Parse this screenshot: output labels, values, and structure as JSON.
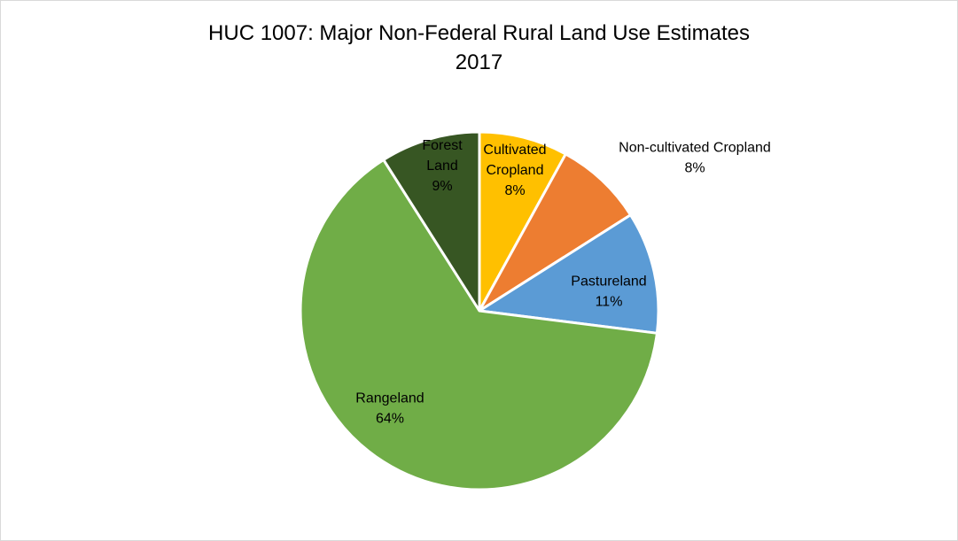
{
  "chart_data": {
    "type": "pie",
    "title": "HUC 1007: Major Non-Federal Rural Land Use Estimates",
    "subtitle": "2017",
    "start_angle_deg": 0,
    "direction": "clockwise",
    "slices": [
      {
        "label": "Cultivated Cropland",
        "label_lines": [
          "Cultivated",
          "Cropland"
        ],
        "value": 8,
        "percent_label": "8%",
        "color": "#FFC000"
      },
      {
        "label": "Non-cultivated Cropland",
        "label_lines": [
          "Non-cultivated Cropland"
        ],
        "value": 8,
        "percent_label": "8%",
        "color": "#ED7D31"
      },
      {
        "label": "Pastureland",
        "label_lines": [
          "Pastureland"
        ],
        "value": 11,
        "percent_label": "11%",
        "color": "#5B9BD5"
      },
      {
        "label": "Rangeland",
        "label_lines": [
          "Rangeland"
        ],
        "value": 64,
        "percent_label": "64%",
        "color": "#70AD47"
      },
      {
        "label": "Forest Land",
        "label_lines": [
          "Forest",
          "Land"
        ],
        "value": 9,
        "percent_label": "9%",
        "color": "#375623"
      }
    ]
  }
}
